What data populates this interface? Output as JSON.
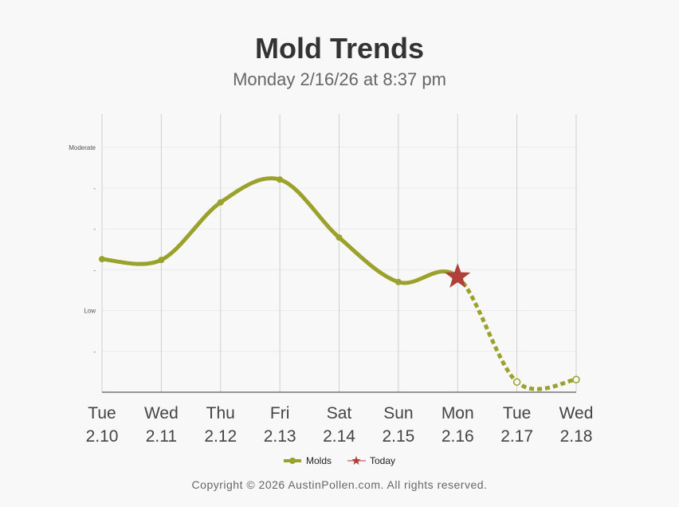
{
  "title": "Mold Trends",
  "subtitle": "Monday 2/16/26 at 8:37 pm",
  "footer": "Copyright © 2026 AustinPollen.com.  All rights reserved.",
  "chart_data": {
    "type": "line",
    "title": "Mold Trends",
    "categories": [
      [
        "Tue",
        "2.10"
      ],
      [
        "Wed",
        "2.11"
      ],
      [
        "Thu",
        "2.12"
      ],
      [
        "Fri",
        "2.13"
      ],
      [
        "Sat",
        "2.14"
      ],
      [
        "Sun",
        "2.15"
      ],
      [
        "Mon",
        "2.16"
      ],
      [
        "Tue",
        "2.17"
      ],
      [
        "Wed",
        "2.18"
      ]
    ],
    "series": [
      {
        "name": "Molds",
        "color": "#9aa22c",
        "values": [
          3.26,
          3.24,
          4.65,
          5.21,
          3.79,
          2.7,
          2.83,
          0.25,
          0.31
        ],
        "forecast_from_index": 6
      }
    ],
    "today": {
      "name": "Today",
      "index": 6,
      "color": "#b0403a"
    },
    "yticks": [
      {
        "v": 1,
        "label": "-"
      },
      {
        "v": 2,
        "label": "Low"
      },
      {
        "v": 3,
        "label": "-"
      },
      {
        "v": 4,
        "label": "-"
      },
      {
        "v": 5,
        "label": "-"
      },
      {
        "v": 6,
        "label": "Moderate"
      }
    ],
    "ylim": [
      0,
      6.8
    ],
    "legend": {
      "position": "bottom",
      "items": [
        "Molds",
        "Today"
      ]
    }
  }
}
